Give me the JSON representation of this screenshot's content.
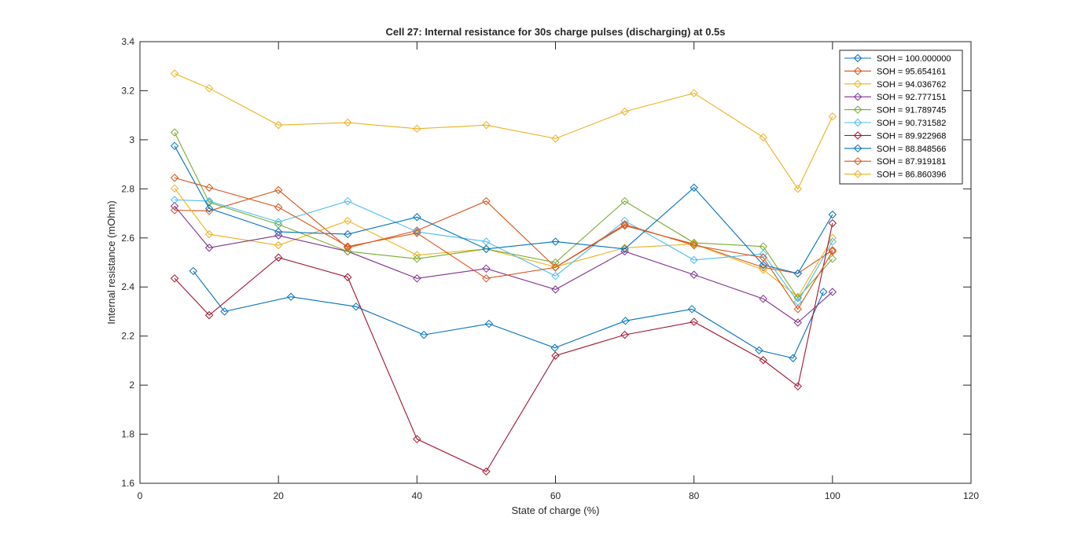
{
  "chart_data": {
    "type": "line",
    "title": "Cell 27: Internal resistance for 30s charge pulses (discharging) at 0.5s",
    "xlabel": "State of charge (%)",
    "ylabel": "Internal resistance (mOhm)",
    "xlim": [
      0,
      120
    ],
    "ylim": [
      1.6,
      3.4
    ],
    "xticks": [
      0,
      20,
      40,
      60,
      80,
      100,
      120
    ],
    "yticks": [
      1.6,
      1.8,
      2,
      2.2,
      2.4,
      2.6,
      2.8,
      3,
      3.2,
      3.4
    ],
    "xtick_labels": [
      "0",
      "20",
      "40",
      "60",
      "80",
      "100",
      "120"
    ],
    "ytick_labels": [
      "1.6",
      "1.8",
      "2",
      "2.2",
      "2.4",
      "2.6",
      "2.8",
      "3",
      "3.2",
      "3.4"
    ],
    "grid": false,
    "legend_position": "top-right",
    "marker": "diamond",
    "series": [
      {
        "name": "SOH = 100.000000",
        "color": "#0072BD",
        "x": [
          7.7,
          12.2,
          21.8,
          31.2,
          41,
          50.4,
          59.9,
          70.1,
          79.7,
          89.4,
          94.3,
          98.7
        ],
        "y": [
          2.465,
          2.3,
          2.36,
          2.32,
          2.205,
          2.25,
          2.152,
          2.262,
          2.31,
          2.142,
          2.11,
          2.38
        ]
      },
      {
        "name": "SOH = 95.654161",
        "color": "#D95319",
        "x": [
          5,
          10,
          20,
          30,
          40,
          50,
          60,
          70,
          80,
          90,
          95,
          100
        ],
        "y": [
          2.713,
          2.71,
          2.795,
          2.56,
          2.63,
          2.75,
          2.48,
          2.65,
          2.575,
          2.48,
          2.455,
          2.55
        ]
      },
      {
        "name": "SOH = 94.036762",
        "color": "#EDB120",
        "x": [
          5,
          10,
          20,
          30,
          40,
          50,
          60,
          70,
          80,
          90,
          95,
          100
        ],
        "y": [
          2.802,
          2.615,
          2.57,
          2.67,
          2.53,
          2.555,
          2.482,
          2.56,
          2.575,
          2.47,
          2.36,
          2.6
        ]
      },
      {
        "name": "SOH = 92.777151",
        "color": "#7E2F8E",
        "x": [
          5,
          10,
          20,
          30,
          40,
          50,
          60,
          70,
          80,
          90,
          95,
          100
        ],
        "y": [
          2.73,
          2.56,
          2.61,
          2.545,
          2.435,
          2.475,
          2.39,
          2.545,
          2.45,
          2.352,
          2.255,
          2.38
        ]
      },
      {
        "name": "SOH = 91.789745",
        "color": "#77AC30",
        "x": [
          5,
          10,
          20,
          30,
          40,
          50,
          60,
          70,
          80,
          90,
          95,
          100
        ],
        "y": [
          3.03,
          2.745,
          2.655,
          2.545,
          2.515,
          2.555,
          2.5,
          2.75,
          2.58,
          2.565,
          2.355,
          2.515
        ]
      },
      {
        "name": "SOH = 90.731582",
        "color": "#4DBEEE",
        "x": [
          5,
          10,
          20,
          30,
          40,
          50,
          60,
          70,
          80,
          90,
          95,
          100
        ],
        "y": [
          2.755,
          2.75,
          2.665,
          2.75,
          2.625,
          2.585,
          2.445,
          2.67,
          2.51,
          2.535,
          2.34,
          2.585
        ]
      },
      {
        "name": "SOH = 89.922968",
        "color": "#A2142F",
        "x": [
          5,
          10,
          20,
          30,
          40,
          50,
          60,
          70,
          80,
          90,
          95,
          100
        ],
        "y": [
          2.435,
          2.285,
          2.52,
          2.44,
          1.78,
          1.648,
          2.12,
          2.205,
          2.258,
          2.102,
          1.995,
          2.66
        ]
      },
      {
        "name": "SOH = 88.848566",
        "color": "#0072BD",
        "x": [
          5,
          10,
          20,
          30,
          40,
          50,
          60,
          70,
          80,
          90,
          95,
          100
        ],
        "y": [
          2.975,
          2.72,
          2.625,
          2.615,
          2.685,
          2.555,
          2.585,
          2.555,
          2.805,
          2.49,
          2.455,
          2.695
        ]
      },
      {
        "name": "SOH = 87.919181",
        "color": "#D95319",
        "x": [
          5,
          10,
          20,
          30,
          40,
          50,
          60,
          70,
          80,
          90,
          95,
          100
        ],
        "y": [
          2.845,
          2.805,
          2.725,
          2.565,
          2.62,
          2.435,
          2.48,
          2.655,
          2.57,
          2.52,
          2.31,
          2.545
        ]
      },
      {
        "name": "SOH = 86.860396",
        "color": "#EDB120",
        "x": [
          5,
          10,
          20,
          30,
          40,
          50,
          60,
          70,
          80,
          90,
          95,
          100
        ],
        "y": [
          3.27,
          3.21,
          3.06,
          3.07,
          3.045,
          3.06,
          3.005,
          3.115,
          3.19,
          3.01,
          2.8,
          3.095
        ]
      }
    ]
  }
}
